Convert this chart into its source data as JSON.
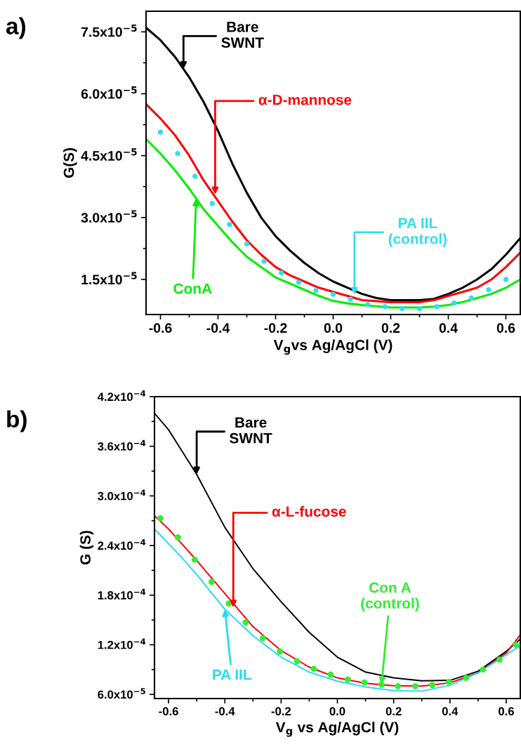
{
  "chart_data": [
    {
      "type": "line",
      "xlabel": "V$_{g}$vs Ag/AgCl (V)",
      "ylabel": "G(S)",
      "xlim": [
        -0.65,
        0.65
      ],
      "ylim": [
        6.5e-06,
        8e-05
      ],
      "xticks": [
        -0.6,
        -0.4,
        -0.2,
        {
          "value": 0,
          "label": "0.0"
        },
        0.2,
        0.4,
        0.6
      ],
      "yticks": [
        {
          "value": 1.5e-05,
          "label": "1.5x10$^{−5}$"
        },
        {
          "value": 3e-05,
          "label": "3.0x10$^{−5}$"
        },
        {
          "value": 4.5e-05,
          "label": "4.5x10$^{−5}$"
        },
        {
          "value": 6e-05,
          "label": "6.0x10$^{−5}$"
        },
        {
          "value": 7.5e-05,
          "label": "7.5x10$^{−5}$"
        }
      ],
      "grid": false,
      "legend": false,
      "series": [
        {
          "type": "line",
          "color": "#000000",
          "x": [
            -0.65,
            -0.6,
            -0.55,
            -0.5,
            -0.45,
            -0.4,
            -0.35,
            -0.3,
            -0.25,
            -0.2,
            -0.15,
            -0.1,
            -0.05,
            0.0,
            0.05,
            0.1,
            0.15,
            0.2,
            0.3,
            0.35,
            0.4,
            0.45,
            0.5,
            0.55,
            0.6,
            0.65
          ],
          "values": [
            7.6e-05,
            7.3e-05,
            6.9e-05,
            6.4e-05,
            5.8e-05,
            5.1e-05,
            4.3e-05,
            3.6e-05,
            3e-05,
            2.55e-05,
            2.2e-05,
            1.9e-05,
            1.65e-05,
            1.45e-05,
            1.3e-05,
            1.15e-05,
            1.05e-05,
            1e-05,
            1e-05,
            1.03e-05,
            1.15e-05,
            1.3e-05,
            1.5e-05,
            1.75e-05,
            2.1e-05,
            2.5e-05
          ]
        },
        {
          "type": "line",
          "color": "#ff0000",
          "x": [
            -0.65,
            -0.6,
            -0.55,
            -0.5,
            -0.45,
            -0.4,
            -0.35,
            -0.3,
            -0.25,
            -0.2,
            -0.15,
            -0.1,
            -0.05,
            0.0,
            0.05,
            0.1,
            0.2,
            0.3,
            0.35,
            0.4,
            0.45,
            0.5,
            0.55,
            0.6,
            0.65
          ],
          "values": [
            5.75e-05,
            5.4e-05,
            5e-05,
            4.5e-05,
            3.9e-05,
            3.4e-05,
            2.9e-05,
            2.45e-05,
            2.1e-05,
            1.8e-05,
            1.6e-05,
            1.45e-05,
            1.3e-05,
            1.2e-05,
            1.1e-05,
            1e-05,
            9.5e-06,
            9.5e-06,
            1e-05,
            1.1e-05,
            1.2e-05,
            1.3e-05,
            1.5e-05,
            1.8e-05,
            2.15e-05
          ]
        },
        {
          "type": "line",
          "color": "#00ee00",
          "x": [
            -0.65,
            -0.6,
            -0.55,
            -0.5,
            -0.45,
            -0.4,
            -0.35,
            -0.3,
            -0.25,
            -0.2,
            -0.15,
            -0.1,
            -0.05,
            0.0,
            0.05,
            0.1,
            0.2,
            0.3,
            0.35,
            0.4,
            0.45,
            0.5,
            0.55,
            0.6,
            0.65
          ],
          "values": [
            4.9e-05,
            4.55e-05,
            4.15e-05,
            3.7e-05,
            3.2e-05,
            2.8e-05,
            2.4e-05,
            2.05e-05,
            1.8e-05,
            1.55e-05,
            1.4e-05,
            1.25e-05,
            1.1e-05,
            9.8e-06,
            9.2e-06,
            8.8e-06,
            8.2e-06,
            8.2e-06,
            8.4e-06,
            8.8e-06,
            9.5e-06,
            1.05e-05,
            1.15e-05,
            1.3e-05,
            1.5e-05
          ]
        },
        {
          "type": "scatter",
          "color": "#33ddee",
          "marker": "circle",
          "x": [
            -0.6,
            -0.54,
            -0.48,
            -0.42,
            -0.36,
            -0.3,
            -0.24,
            -0.18,
            -0.12,
            -0.06,
            0.0,
            0.06,
            0.12,
            0.18,
            0.24,
            0.3,
            0.36,
            0.42,
            0.48,
            0.54,
            0.6
          ],
          "values": [
            5.07e-05,
            4.55e-05,
            4e-05,
            3.34e-05,
            2.83e-05,
            2.36e-05,
            1.94e-05,
            1.66e-05,
            1.43e-05,
            1.23e-05,
            1.14e-05,
            1.02e-05,
            8.9e-06,
            8.4e-06,
            7.9e-06,
            7.9e-06,
            8.4e-06,
            9.3e-06,
            1.05e-05,
            1.25e-05,
            1.5e-05
          ]
        }
      ],
      "annotations": [
        "a)",
        {
          "text": "Bare\nSWNT",
          "x": -0.52,
          "y": 6.6e-05
        },
        {
          "text": "α-D-mannose",
          "x": -0.41,
          "y": 3.56e-05
        },
        {
          "text": "ConA",
          "x": -0.476,
          "y": 3.46e-05
        },
        {
          "text": "PA IIL\n(control)",
          "x": 0.074,
          "y": 1.13e-05
        }
      ]
    },
    {
      "type": "line",
      "xlabel": "V$_{g}$ vs Ag/AgCl (V)",
      "ylabel": "G (S)",
      "xlim": [
        -0.65,
        0.65
      ],
      "ylim": [
        5.5e-05,
        0.00042
      ],
      "xticks": [
        -0.6,
        -0.4,
        -0.2,
        {
          "value": 0,
          "label": "0.0"
        },
        0.2,
        0.4,
        0.6
      ],
      "yticks": [
        {
          "value": 6e-05,
          "label": "6.0x10$^{−5}$"
        },
        {
          "value": 0.00012,
          "label": "1.2x10$^{−4}$"
        },
        {
          "value": 0.00018,
          "label": "1.8x10$^{−4}$"
        },
        {
          "value": 0.00024,
          "label": "2.4x10$^{−4}$"
        },
        {
          "value": 0.0003,
          "label": "3.0x10$^{−4}$"
        },
        {
          "value": 0.00036,
          "label": "3.6x10$^{−4}$"
        },
        {
          "value": 0.00042,
          "label": "4.2x10$^{−4}$"
        }
      ],
      "grid": false,
      "legend": false,
      "series": [
        {
          "type": "line",
          "color": "#000000",
          "x": [
            -0.65,
            -0.6,
            -0.5,
            -0.4,
            -0.3,
            -0.2,
            -0.1,
            0.0,
            0.1,
            0.2,
            0.3,
            0.4,
            0.5,
            0.6,
            0.65
          ],
          "values": [
            0.0004,
            0.00038,
            0.000326,
            0.000262,
            0.000212,
            0.000172,
            0.000135,
            0.000105,
            8.7e-05,
            8e-05,
            7.65e-05,
            7.7e-05,
            8.8e-05,
            0.000112,
            0.000127
          ]
        },
        {
          "type": "line",
          "color": "#ff0000",
          "x": [
            -0.65,
            -0.6,
            -0.5,
            -0.4,
            -0.3,
            -0.2,
            -0.1,
            0.0,
            0.1,
            0.2,
            0.3,
            0.4,
            0.5,
            0.6,
            0.65
          ],
          "values": [
            0.000276,
            0.00026,
            0.000222,
            0.000182,
            0.000142,
            0.000113,
            9.3e-05,
            8e-05,
            7.35e-05,
            7.05e-05,
            7e-05,
            7.4e-05,
            8.6e-05,
            0.00011,
            0.000132
          ]
        },
        {
          "type": "line",
          "color": "#22ddee",
          "x": [
            -0.65,
            -0.56,
            -0.5,
            -0.4,
            -0.3,
            -0.2,
            -0.1,
            0.0,
            0.1,
            0.2,
            0.3,
            0.4,
            0.5,
            0.6,
            0.65
          ],
          "values": [
            0.00026,
            0.000228,
            0.000205,
            0.000163,
            0.000131,
            0.000105,
            8.7e-05,
            7.6e-05,
            6.9e-05,
            6.45e-05,
            6.4e-05,
            7.1e-05,
            8.6e-05,
            0.000108,
            0.000119
          ]
        },
        {
          "type": "scatter",
          "color": "#33ee33",
          "marker": "circle",
          "x": [
            -0.629,
            -0.567,
            -0.507,
            -0.447,
            -0.386,
            -0.326,
            -0.265,
            -0.204,
            -0.143,
            -0.084,
            -0.024,
            0.037,
            0.096,
            0.157,
            0.215,
            0.277,
            0.337,
            0.396,
            0.457,
            0.517,
            0.576,
            0.634
          ],
          "values": [
            0.000273,
            0.00025,
            0.000223,
            0.000196,
            0.00017,
            0.000147,
            0.000128,
            0.000112,
            0.0001,
            9.1e-05,
            8.4e-05,
            7.8e-05,
            7.45e-05,
            7.2e-05,
            7e-05,
            7e-05,
            7.15e-05,
            7.5e-05,
            8e-05,
            9e-05,
            0.000102,
            0.00012
          ]
        }
      ],
      "annotations": [
        "b)",
        {
          "text": "Bare\nSWNT",
          "x": -0.5,
          "y": 0.000326
        },
        {
          "text": "α-L-fucose",
          "x": -0.37,
          "y": 0.000165
        },
        {
          "text": "Con A\n(control)",
          "x": 0.157,
          "y": 7.2e-05
        },
        {
          "text": "PA IIL",
          "x": -0.4,
          "y": 0.000163
        }
      ]
    }
  ]
}
